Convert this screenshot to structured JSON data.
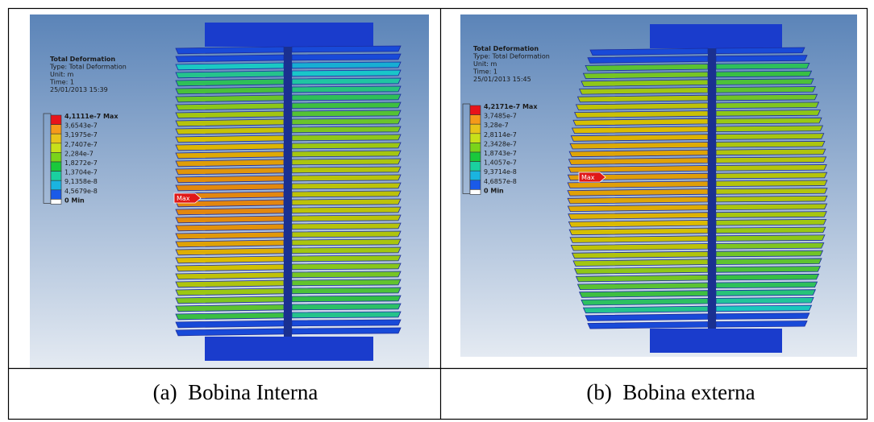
{
  "panels": [
    {
      "legend": {
        "title": "Total Deformation",
        "type": "Type: Total Deformation",
        "unit": "Unit: m",
        "time": "Time: 1",
        "date": "25/01/2013 15:39",
        "scale": [
          "4,1111e-7 Max",
          "3,6543e-7",
          "3,1975e-7",
          "2,7407e-7",
          "2,284e-7",
          "1,8272e-7",
          "1,3704e-7",
          "9,1358e-8",
          "4,5679e-8",
          "0 Min"
        ]
      },
      "max_marker": "Max",
      "caption": "(a)  Bobina Interna"
    },
    {
      "legend": {
        "title": "Total Deformation",
        "type": "Type: Total Deformation",
        "unit": "Unit: m",
        "time": "Time: 1",
        "date": "25/01/2013 15:45",
        "scale": [
          "4,2171e-7 Max",
          "3,7485e-7",
          "3,28e-7",
          "2,8114e-7",
          "2,3428e-7",
          "1,8743e-7",
          "1,4057e-7",
          "9,3714e-8",
          "4,6857e-8",
          "0 Min"
        ]
      },
      "max_marker": "Max",
      "caption": "(b)  Bobina externa"
    }
  ]
}
